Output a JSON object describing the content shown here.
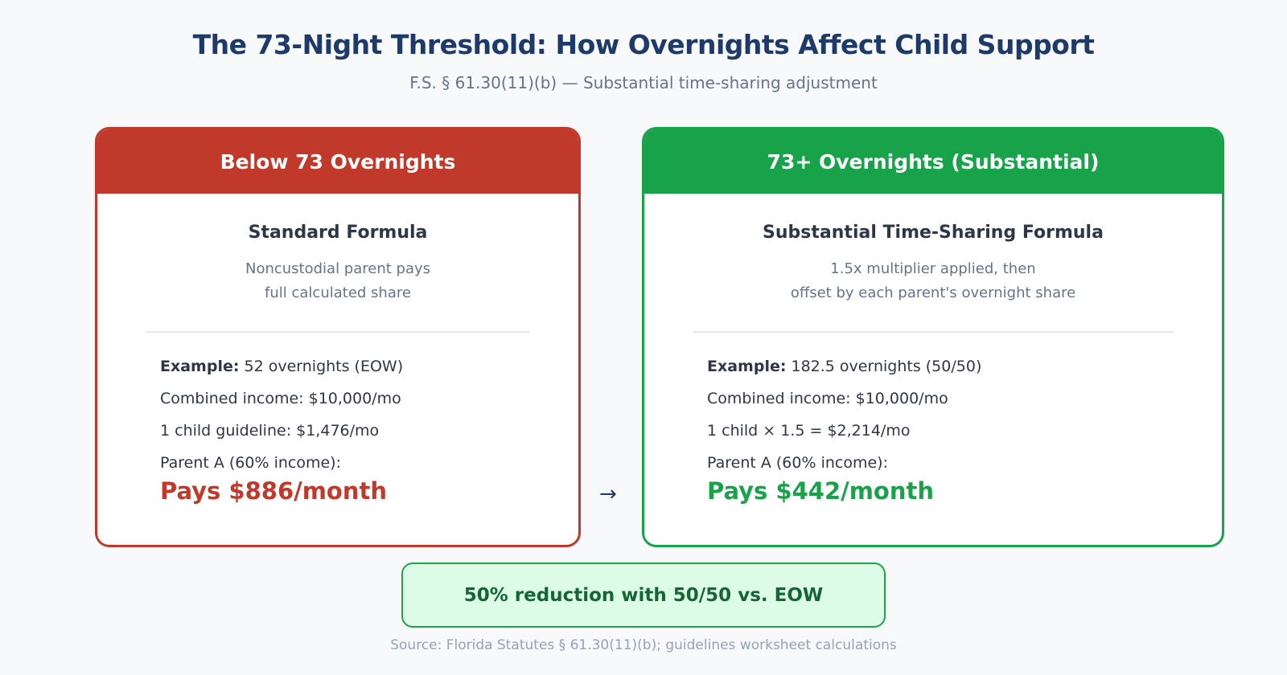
{
  "header": {
    "title": "The 73-Night Threshold: How Overnights Affect Child Support",
    "subtitle": "F.S. § 61.30(11)(b) — Substantial time-sharing adjustment"
  },
  "colors": {
    "below": "#c0392b",
    "substantial": "#18a34a",
    "title": "#1e3a6b"
  },
  "cards": [
    {
      "heading": "Below 73 Overnights",
      "formula": "Standard Formula",
      "desc_lines": [
        "Noncustodial parent pays",
        "full calculated share"
      ],
      "example_label": "Example:",
      "example_value": " 52 overnights (EOW)",
      "lines": [
        "Combined income: $10,000/mo",
        "1 child guideline: $1,476/mo",
        "Parent A (60% income):"
      ],
      "result": "Pays $886/month"
    },
    {
      "heading": "73+ Overnights (Substantial)",
      "formula": "Substantial Time-Sharing Formula",
      "desc_lines": [
        "1.5x multiplier applied, then",
        "offset by each parent's overnight share"
      ],
      "example_label": "Example:",
      "example_value": " 182.5 overnights (50/50)",
      "lines": [
        "Combined income: $10,000/mo",
        "1 child × 1.5 = $2,214/mo",
        "Parent A (60% income):"
      ],
      "result": "Pays $442/month"
    }
  ],
  "arrow": "→",
  "summary": "50% reduction with 50/50 vs. EOW",
  "source": "Source: Florida Statutes § 61.30(11)(b); guidelines worksheet calculations"
}
